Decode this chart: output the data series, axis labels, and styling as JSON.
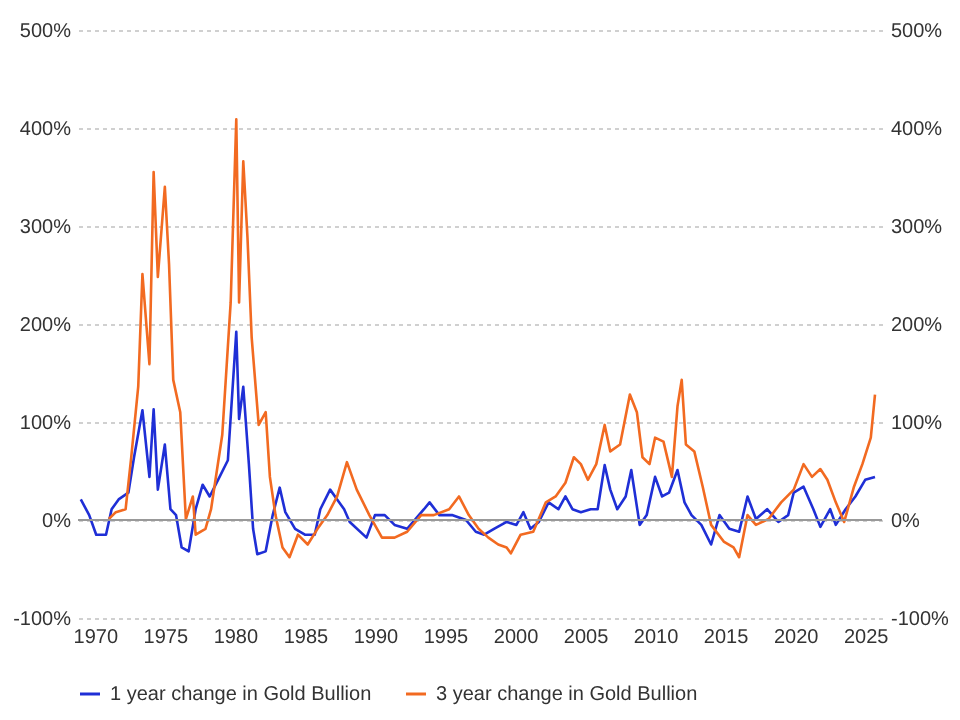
{
  "chart_data": {
    "type": "line",
    "xlim": [
      1968.8,
      2026.2
    ],
    "xticks": [
      1970,
      1975,
      1980,
      1985,
      1990,
      1995,
      2000,
      2005,
      2010,
      2015,
      2020,
      2025
    ],
    "ylim": [
      -100,
      500
    ],
    "yticks": [
      {
        "value": -100,
        "label": "-100%"
      },
      {
        "value": 0,
        "label": "0%"
      },
      {
        "value": 100,
        "label": "100%"
      },
      {
        "value": 200,
        "label": "200%"
      },
      {
        "value": 300,
        "label": "300%"
      },
      {
        "value": 400,
        "label": "400%"
      },
      {
        "value": 500,
        "label": "500%"
      }
    ],
    "y2lim": [
      -100,
      500
    ],
    "y2ticks": [
      {
        "value": -100,
        "label": "-100%"
      },
      {
        "value": 0,
        "label": "0%"
      },
      {
        "value": 100,
        "label": "100%"
      },
      {
        "value": 200,
        "label": "200%"
      },
      {
        "value": 300,
        "label": "300%"
      },
      {
        "value": 400,
        "label": "400%"
      },
      {
        "value": 500,
        "label": "500%"
      }
    ],
    "grid": "y",
    "legend": "bottom",
    "ref_lines": [
      {
        "axis": "y",
        "value": 0,
        "color": "#999999"
      }
    ],
    "series": [
      {
        "name": "1 year change in Gold Bullion",
        "color": "#1f2fd6",
        "x": [
          1969.0,
          1969.6,
          1970.1,
          1970.8,
          1971.2,
          1971.7,
          1972.4,
          1972.8,
          1973.4,
          1973.9,
          1974.2,
          1974.5,
          1975.0,
          1975.4,
          1975.8,
          1976.2,
          1976.7,
          1977.2,
          1977.7,
          1978.2,
          1978.8,
          1979.5,
          1980.1,
          1980.3,
          1980.6,
          1981.0,
          1981.3,
          1981.6,
          1982.2,
          1982.7,
          1983.2,
          1983.6,
          1984.3,
          1985.0,
          1985.7,
          1986.1,
          1986.8,
          1987.3,
          1987.8,
          1988.2,
          1989.4,
          1990.0,
          1990.7,
          1991.4,
          1992.3,
          1993.5,
          1993.9,
          1994.6,
          1995.5,
          1996.5,
          1997.2,
          1997.8,
          1998.5,
          1999.4,
          2000.1,
          2000.6,
          2001.1,
          2001.7,
          2002.4,
          2003.1,
          2003.6,
          2004.1,
          2004.7,
          2005.4,
          2005.9,
          2006.4,
          2006.8,
          2007.3,
          2007.9,
          2008.3,
          2008.9,
          2009.4,
          2010.0,
          2010.5,
          2011.0,
          2011.6,
          2012.1,
          2012.6,
          2013.3,
          2014.0,
          2014.6,
          2015.3,
          2016.0,
          2016.6,
          2017.2,
          2018.0,
          2018.8,
          2019.5,
          2019.9,
          2020.6,
          2021.3,
          2021.8,
          2022.5,
          2022.9,
          2023.6,
          2024.3,
          2025.0,
          2025.7
        ],
        "values": [
          21,
          5,
          -15,
          -15,
          11,
          21,
          28,
          64,
          112,
          44,
          113,
          31,
          77,
          11,
          5,
          -28,
          -32,
          11,
          36,
          24,
          41,
          61,
          192,
          103,
          136,
          57,
          -9,
          -35,
          -32,
          5,
          33,
          8,
          -9,
          -15,
          -15,
          11,
          31,
          21,
          11,
          -2,
          -18,
          5,
          5,
          -5,
          -9,
          11,
          18,
          5,
          5,
          0,
          -12,
          -15,
          -9,
          -2,
          -5,
          8,
          -9,
          -2,
          18,
          11,
          24,
          11,
          8,
          11,
          11,
          56,
          31,
          11,
          24,
          51,
          -5,
          5,
          44,
          24,
          28,
          51,
          18,
          5,
          -5,
          -25,
          5,
          -9,
          -12,
          24,
          1,
          11,
          -2,
          5,
          28,
          34,
          11,
          -7,
          11,
          -5,
          11,
          24,
          41,
          44
        ]
      },
      {
        "name": "3 year change in Gold Bullion",
        "color": "#f26a21",
        "x": [
          1971.0,
          1971.5,
          1972.2,
          1972.6,
          1973.1,
          1973.4,
          1973.9,
          1974.2,
          1974.5,
          1975.0,
          1975.3,
          1975.6,
          1976.1,
          1976.5,
          1977.0,
          1977.2,
          1977.9,
          1978.3,
          1979.1,
          1979.7,
          1980.1,
          1980.3,
          1980.6,
          1980.9,
          1981.2,
          1981.7,
          1982.2,
          1982.5,
          1982.9,
          1983.4,
          1983.9,
          1984.5,
          1985.2,
          1985.9,
          1986.6,
          1987.3,
          1988.0,
          1988.7,
          1989.6,
          1990.5,
          1991.4,
          1992.3,
          1993.3,
          1994.2,
          1995.3,
          1996.0,
          1996.7,
          1997.4,
          1998.1,
          1998.8,
          1999.4,
          1999.7,
          2000.4,
          2001.3,
          2002.2,
          2002.9,
          2003.6,
          2004.2,
          2004.7,
          2005.2,
          2005.8,
          2006.4,
          2006.8,
          2007.5,
          2008.2,
          2008.7,
          2009.1,
          2009.6,
          2010.0,
          2010.6,
          2011.2,
          2011.6,
          2011.9,
          2012.2,
          2012.8,
          2013.4,
          2014.0,
          2014.9,
          2015.6,
          2016.0,
          2016.6,
          2017.2,
          2018.1,
          2019.0,
          2019.9,
          2020.6,
          2021.2,
          2021.8,
          2022.3,
          2022.9,
          2023.5,
          2024.2,
          2024.8,
          2025.4,
          2025.7
        ],
        "values": [
          1,
          8,
          11,
          64,
          136,
          251,
          159,
          355,
          248,
          340,
          261,
          143,
          110,
          1,
          24,
          -15,
          -9,
          11,
          87,
          222,
          409,
          222,
          366,
          288,
          186,
          97,
          110,
          44,
          5,
          -28,
          -38,
          -15,
          -25,
          -9,
          5,
          24,
          59,
          31,
          5,
          -18,
          -18,
          -12,
          5,
          5,
          11,
          24,
          5,
          -9,
          -18,
          -25,
          -28,
          -34,
          -15,
          -12,
          18,
          24,
          38,
          64,
          57,
          41,
          57,
          97,
          70,
          77,
          128,
          110,
          64,
          57,
          84,
          80,
          44,
          116,
          143,
          77,
          70,
          34,
          -5,
          -22,
          -28,
          -38,
          5,
          -5,
          1,
          18,
          31,
          57,
          44,
          52,
          41,
          18,
          -2,
          34,
          57,
          84,
          128
        ]
      }
    ]
  }
}
